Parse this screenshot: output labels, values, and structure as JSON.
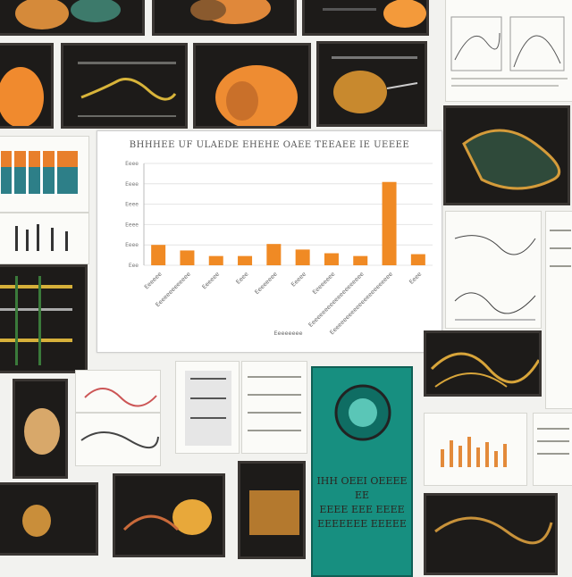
{
  "collage": {
    "chart_title": "BHHHEE UF ULAEDE EHEHE OAEE TEEAEE IE UEEEE",
    "x_axis_label": "Eeeeeeee",
    "teal_poster_lines": [
      "IHH OEEI OEEEE",
      "EE",
      "EEEE EEE EEEE",
      "EEEEEEE EEEEE"
    ]
  },
  "chart_data": {
    "type": "bar",
    "title": "BHHHEE UF ULAEDE EHEHE OAEE TEEAEE IE UEEEE",
    "xlabel": "Eeeeeeee",
    "ylabel": "",
    "categories": [
      "Eeeeee",
      "Eeeeeeeeeeeee",
      "Eeeeee",
      "Eeee",
      "Eeeeeeee",
      "Eeeee",
      "Eeeeeeee",
      "Eeeeeeeeeeeeeeeeeeeee",
      "Eeeeeeeeeeeeeeeeeeeeeeee",
      "Eeee"
    ],
    "values": [
      22,
      16,
      10,
      10,
      23,
      17,
      13,
      10,
      90,
      12
    ],
    "ylim": [
      0,
      110
    ],
    "yticks": [
      "Eeee",
      "Eeee",
      "Eeee",
      "Eeee",
      "Eeee",
      "Eee"
    ],
    "colors": {
      "bar": "#f08a24"
    },
    "grid": true
  }
}
